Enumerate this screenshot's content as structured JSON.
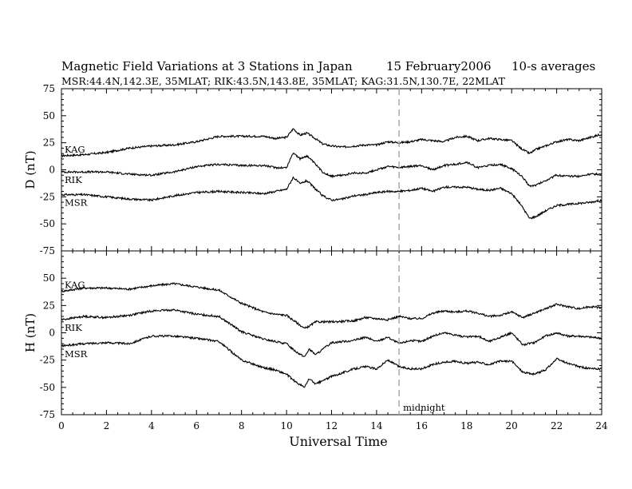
{
  "chart_data": {
    "type": "line",
    "title": "Magnetic Field Variations at 3 Stations in Japan",
    "date": "15 February2006",
    "averaging": "10-s averages",
    "subtitle": "MSR:44.4N,142.3E, 35MLAT;  RIK:43.5N,143.8E, 35MLAT;  KAG:31.5N,130.7E, 22MLAT",
    "xlabel": "Universal Time",
    "xlim": [
      0,
      24
    ],
    "xticks": [
      "0",
      "2",
      "4",
      "6",
      "8",
      "10",
      "12",
      "14",
      "16",
      "18",
      "20",
      "22",
      "24"
    ],
    "marker": {
      "x": 15,
      "label": "midnight",
      "style": "dashed",
      "color": "#aaaaaa"
    },
    "panels": [
      {
        "id": "D",
        "ylabel": "D (nT)",
        "ylim": [
          -75,
          75
        ],
        "yticks": [
          "75",
          "50",
          "25",
          "0",
          "-25",
          "-50",
          "-75"
        ],
        "x": [
          0,
          1,
          2,
          3,
          4,
          5,
          6,
          7,
          8,
          9,
          9.5,
          10,
          10.3,
          10.6,
          10.9,
          11.2,
          11.6,
          12,
          12.5,
          13,
          13.5,
          14,
          14.5,
          15,
          15.5,
          16,
          16.5,
          17,
          17.5,
          18,
          18.5,
          19,
          19.5,
          20,
          20.4,
          20.8,
          21.1,
          21.5,
          22,
          22.5,
          23,
          23.5,
          24
        ],
        "series": [
          {
            "name": "KAG",
            "values": [
              13,
              14,
              16,
              20,
              22,
              23,
              26,
              31,
              31,
              31,
              29,
              30,
              38,
              32,
              34,
              30,
              24,
              22,
              21,
              22,
              23,
              23,
              26,
              25,
              26,
              28,
              27,
              26,
              30,
              31,
              27,
              29,
              28,
              27,
              20,
              15,
              19,
              22,
              26,
              28,
              27,
              30,
              33
            ]
          },
          {
            "name": "RIK",
            "values": [
              -2,
              -2,
              -2,
              -4,
              -5,
              -2,
              3,
              5,
              4,
              4,
              2,
              2,
              16,
              10,
              13,
              7,
              -2,
              -6,
              -5,
              -3,
              -3,
              0,
              3,
              2,
              3,
              4,
              0,
              4,
              5,
              7,
              2,
              4,
              5,
              1,
              -5,
              -15,
              -14,
              -10,
              -5,
              -6,
              -6,
              -4,
              -4
            ]
          },
          {
            "name": "MSR",
            "values": [
              -23,
              -23,
              -25,
              -27,
              -28,
              -24,
              -21,
              -20,
              -21,
              -22,
              -20,
              -18,
              -7,
              -13,
              -10,
              -16,
              -24,
              -28,
              -27,
              -24,
              -23,
              -21,
              -20,
              -20,
              -19,
              -17,
              -20,
              -16,
              -16,
              -16,
              -18,
              -19,
              -17,
              -22,
              -32,
              -45,
              -43,
              -38,
              -33,
              -32,
              -31,
              -30,
              -28
            ]
          }
        ]
      },
      {
        "id": "H",
        "ylabel": "H (nT)",
        "ylim": [
          -75,
          75
        ],
        "yticks": [
          "50",
          "25",
          "0",
          "-25",
          "-50",
          "-75"
        ],
        "x": [
          0,
          1,
          2,
          3,
          4,
          5,
          6,
          7,
          8,
          9,
          9.5,
          10,
          10.4,
          10.8,
          11,
          11.3,
          12,
          13,
          13.5,
          14,
          14.5,
          15,
          15.5,
          16,
          16.5,
          17,
          17.5,
          18,
          18.5,
          19,
          19.5,
          20,
          20.5,
          21,
          21.5,
          22,
          22.5,
          23,
          23.5,
          24
        ],
        "series": [
          {
            "name": "KAG",
            "values": [
              38,
              41,
              41,
              40,
              43,
              45,
              42,
              39,
              27,
              19,
              17,
              16,
              10,
              4,
              6,
              10,
              10,
              11,
              14,
              13,
              12,
              15,
              13,
              13,
              18,
              20,
              19,
              20,
              18,
              15,
              16,
              19,
              14,
              18,
              22,
              26,
              24,
              22,
              24,
              23
            ]
          },
          {
            "name": "RIK",
            "values": [
              12,
              15,
              14,
              16,
              20,
              21,
              17,
              15,
              1,
              -6,
              -8,
              -10,
              -17,
              -22,
              -15,
              -20,
              -9,
              -7,
              -4,
              -8,
              -4,
              -10,
              -7,
              -8,
              -3,
              0,
              -2,
              -4,
              -3,
              -8,
              -4,
              0,
              -11,
              -9,
              -3,
              0,
              -3,
              -3,
              -4,
              -5
            ]
          },
          {
            "name": "MSR",
            "values": [
              -12,
              -10,
              -9,
              -10,
              -3,
              -3,
              -5,
              -8,
              -25,
              -32,
              -34,
              -38,
              -45,
              -50,
              -42,
              -47,
              -40,
              -33,
              -31,
              -33,
              -25,
              -31,
              -33,
              -33,
              -29,
              -27,
              -26,
              -28,
              -27,
              -29,
              -26,
              -26,
              -36,
              -38,
              -34,
              -24,
              -28,
              -31,
              -33,
              -33
            ]
          }
        ]
      }
    ]
  }
}
